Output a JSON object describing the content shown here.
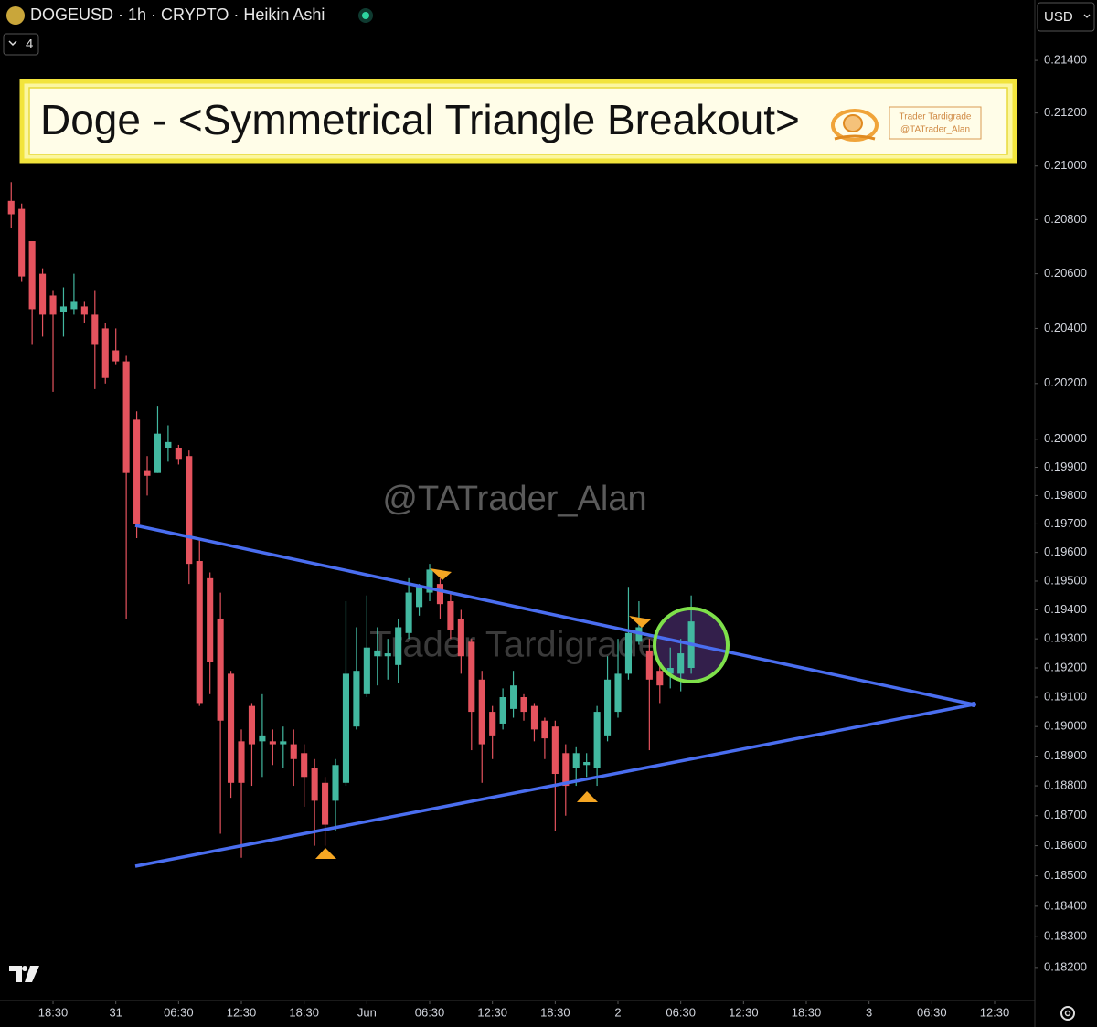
{
  "chart_data": {
    "type": "candlestick",
    "title": "DOGEUSD · 1h · CRYPTO · Heikin Ashi",
    "indicator_count": "4",
    "currency": "USD",
    "banner": "Doge - <Symmetrical Triangle Breakout>",
    "logo_name": "Trader Tardigrade",
    "logo_handle": "@TATrader_Alan",
    "watermark_handle": "@TATrader_Alan",
    "watermark_name": "Trader Tardigrade",
    "log_scale": true,
    "up_color": "#42b8a0",
    "down_color": "#e5535e",
    "x": [
      -4,
      -3,
      -2,
      -1,
      0,
      1,
      2,
      3,
      4,
      5,
      6,
      7,
      8,
      9,
      10,
      11,
      12,
      13,
      14,
      15,
      16,
      17,
      18,
      19,
      20,
      21,
      22,
      23,
      24,
      25,
      26,
      27,
      28,
      29,
      30,
      31,
      32,
      33,
      34,
      35,
      36,
      37,
      38,
      39,
      40,
      41,
      42,
      43,
      44,
      45,
      46,
      47,
      48,
      49,
      50,
      51,
      52,
      53,
      54,
      55,
      56,
      57,
      58,
      59,
      60,
      61
    ],
    "open": [
      0.2087,
      0.2084,
      0.2072,
      0.206,
      0.2052,
      0.2046,
      0.2047,
      0.2048,
      0.2045,
      0.204,
      0.2032,
      0.2028,
      0.2007,
      0.1989,
      0.1988,
      0.1997,
      0.1997,
      0.1994,
      0.1957,
      0.1951,
      0.1937,
      0.1918,
      0.1895,
      0.1907,
      0.1895,
      0.1895,
      0.1894,
      0.1894,
      0.1891,
      0.1886,
      0.1881,
      0.1875,
      0.1881,
      0.19,
      0.1911,
      0.1924,
      0.1924,
      0.1921,
      0.1932,
      0.1941,
      0.1946,
      0.1949,
      0.1943,
      0.1937,
      0.1929,
      0.1916,
      0.1905,
      0.1901,
      0.1906,
      0.191,
      0.1907,
      0.1902,
      0.19,
      0.1891,
      0.1886,
      0.1887,
      0.1886,
      0.1897,
      0.1905,
      0.1918,
      0.1929,
      0.1926,
      0.1919,
      0.1918,
      0.1918,
      0.192
    ],
    "high": [
      0.2094,
      0.2086,
      0.2072,
      0.2062,
      0.2054,
      0.2055,
      0.206,
      0.205,
      0.2054,
      0.2042,
      0.204,
      0.203,
      0.201,
      0.1994,
      0.2012,
      0.2005,
      0.1998,
      0.1996,
      0.1965,
      0.1953,
      0.1946,
      0.1919,
      0.1899,
      0.1908,
      0.1911,
      0.1899,
      0.19,
      0.1899,
      0.1894,
      0.1889,
      0.1883,
      0.1889,
      0.1943,
      0.1934,
      0.1945,
      0.1934,
      0.193,
      0.1937,
      0.1951,
      0.1949,
      0.1956,
      0.1951,
      0.1946,
      0.194,
      0.193,
      0.1919,
      0.1907,
      0.1913,
      0.1919,
      0.1911,
      0.1908,
      0.1903,
      0.1902,
      0.1894,
      0.1893,
      0.1891,
      0.1907,
      0.1924,
      0.193,
      0.1948,
      0.1943,
      0.193,
      0.1922,
      0.1927,
      0.193,
      0.1945
    ],
    "low": [
      0.2077,
      0.2057,
      0.2034,
      0.2037,
      0.2017,
      0.2037,
      0.2045,
      0.2042,
      0.2018,
      0.202,
      0.2027,
      0.1937,
      0.1965,
      0.198,
      0.1988,
      0.1992,
      0.1991,
      0.1949,
      0.1907,
      0.1911,
      0.1864,
      0.1876,
      0.1856,
      0.188,
      0.1883,
      0.1887,
      0.1886,
      0.188,
      0.1873,
      0.186,
      0.186,
      0.1865,
      0.188,
      0.1899,
      0.191,
      0.1914,
      0.1916,
      0.1915,
      0.193,
      0.1938,
      0.1943,
      0.1937,
      0.193,
      0.1918,
      0.1892,
      0.1881,
      0.1889,
      0.1899,
      0.1903,
      0.1902,
      0.1895,
      0.1889,
      0.1865,
      0.187,
      0.188,
      0.1883,
      0.188,
      0.1895,
      0.1903,
      0.1916,
      0.1928,
      0.1892,
      0.1908,
      0.1913,
      0.1912,
      0.1918
    ],
    "close": [
      0.2082,
      0.2059,
      0.2047,
      0.2045,
      0.2045,
      0.2048,
      0.205,
      0.2045,
      0.2034,
      0.2022,
      0.2028,
      0.1988,
      0.197,
      0.1987,
      0.2002,
      0.1999,
      0.1993,
      0.1956,
      0.1908,
      0.1922,
      0.1902,
      0.1881,
      0.1881,
      0.1894,
      0.1897,
      0.1894,
      0.1895,
      0.1889,
      0.1883,
      0.1875,
      0.1867,
      0.1887,
      0.1918,
      0.1919,
      0.1927,
      0.1926,
      0.1925,
      0.1934,
      0.1946,
      0.1948,
      0.1954,
      0.1942,
      0.1933,
      0.1924,
      0.1905,
      0.1894,
      0.1897,
      0.191,
      0.1914,
      0.1905,
      0.1899,
      0.1896,
      0.1884,
      0.188,
      0.1891,
      0.1888,
      0.1905,
      0.1916,
      0.1918,
      0.1932,
      0.1934,
      0.1916,
      0.1914,
      0.192,
      0.1925,
      0.1936
    ],
    "xlim": [
      -5.07,
      93.67
    ],
    "xticks": [
      {
        "value": 0,
        "label": "18:30"
      },
      {
        "value": 6,
        "label": "31"
      },
      {
        "value": 12,
        "label": "06:30"
      },
      {
        "value": 18,
        "label": "12:30"
      },
      {
        "value": 24,
        "label": "18:30"
      },
      {
        "value": 30,
        "label": "Jun"
      },
      {
        "value": 36,
        "label": "06:30"
      },
      {
        "value": 42,
        "label": "12:30"
      },
      {
        "value": 48,
        "label": "18:30"
      },
      {
        "value": 54,
        "label": "2"
      },
      {
        "value": 60,
        "label": "06:30"
      },
      {
        "value": 66,
        "label": "12:30"
      },
      {
        "value": 72,
        "label": "18:30"
      },
      {
        "value": 78,
        "label": "3"
      },
      {
        "value": 84,
        "label": "06:30"
      },
      {
        "value": 90,
        "label": "12:30"
      }
    ],
    "ylim": [
      0.18093,
      0.21632
    ],
    "yticks": [
      {
        "value": 0.214,
        "label": "0.21400"
      },
      {
        "value": 0.212,
        "label": "0.21200"
      },
      {
        "value": 0.21,
        "label": "0.21000"
      },
      {
        "value": 0.208,
        "label": "0.20800"
      },
      {
        "value": 0.206,
        "label": "0.20600"
      },
      {
        "value": 0.204,
        "label": "0.20400"
      },
      {
        "value": 0.202,
        "label": "0.20200"
      },
      {
        "value": 0.2,
        "label": "0.20000"
      },
      {
        "value": 0.199,
        "label": "0.19900"
      },
      {
        "value": 0.198,
        "label": "0.19800"
      },
      {
        "value": 0.197,
        "label": "0.19700"
      },
      {
        "value": 0.196,
        "label": "0.19600"
      },
      {
        "value": 0.195,
        "label": "0.19500"
      },
      {
        "value": 0.194,
        "label": "0.19400"
      },
      {
        "value": 0.193,
        "label": "0.19300"
      },
      {
        "value": 0.192,
        "label": "0.19200"
      },
      {
        "value": 0.191,
        "label": "0.19100"
      },
      {
        "value": 0.19,
        "label": "0.19000"
      },
      {
        "value": 0.189,
        "label": "0.18900"
      },
      {
        "value": 0.188,
        "label": "0.18800"
      },
      {
        "value": 0.187,
        "label": "0.18700"
      },
      {
        "value": 0.186,
        "label": "0.18600"
      },
      {
        "value": 0.185,
        "label": "0.18500"
      },
      {
        "value": 0.184,
        "label": "0.18400"
      },
      {
        "value": 0.183,
        "label": "0.18300"
      },
      {
        "value": 0.182,
        "label": "0.18200"
      }
    ]
  }
}
